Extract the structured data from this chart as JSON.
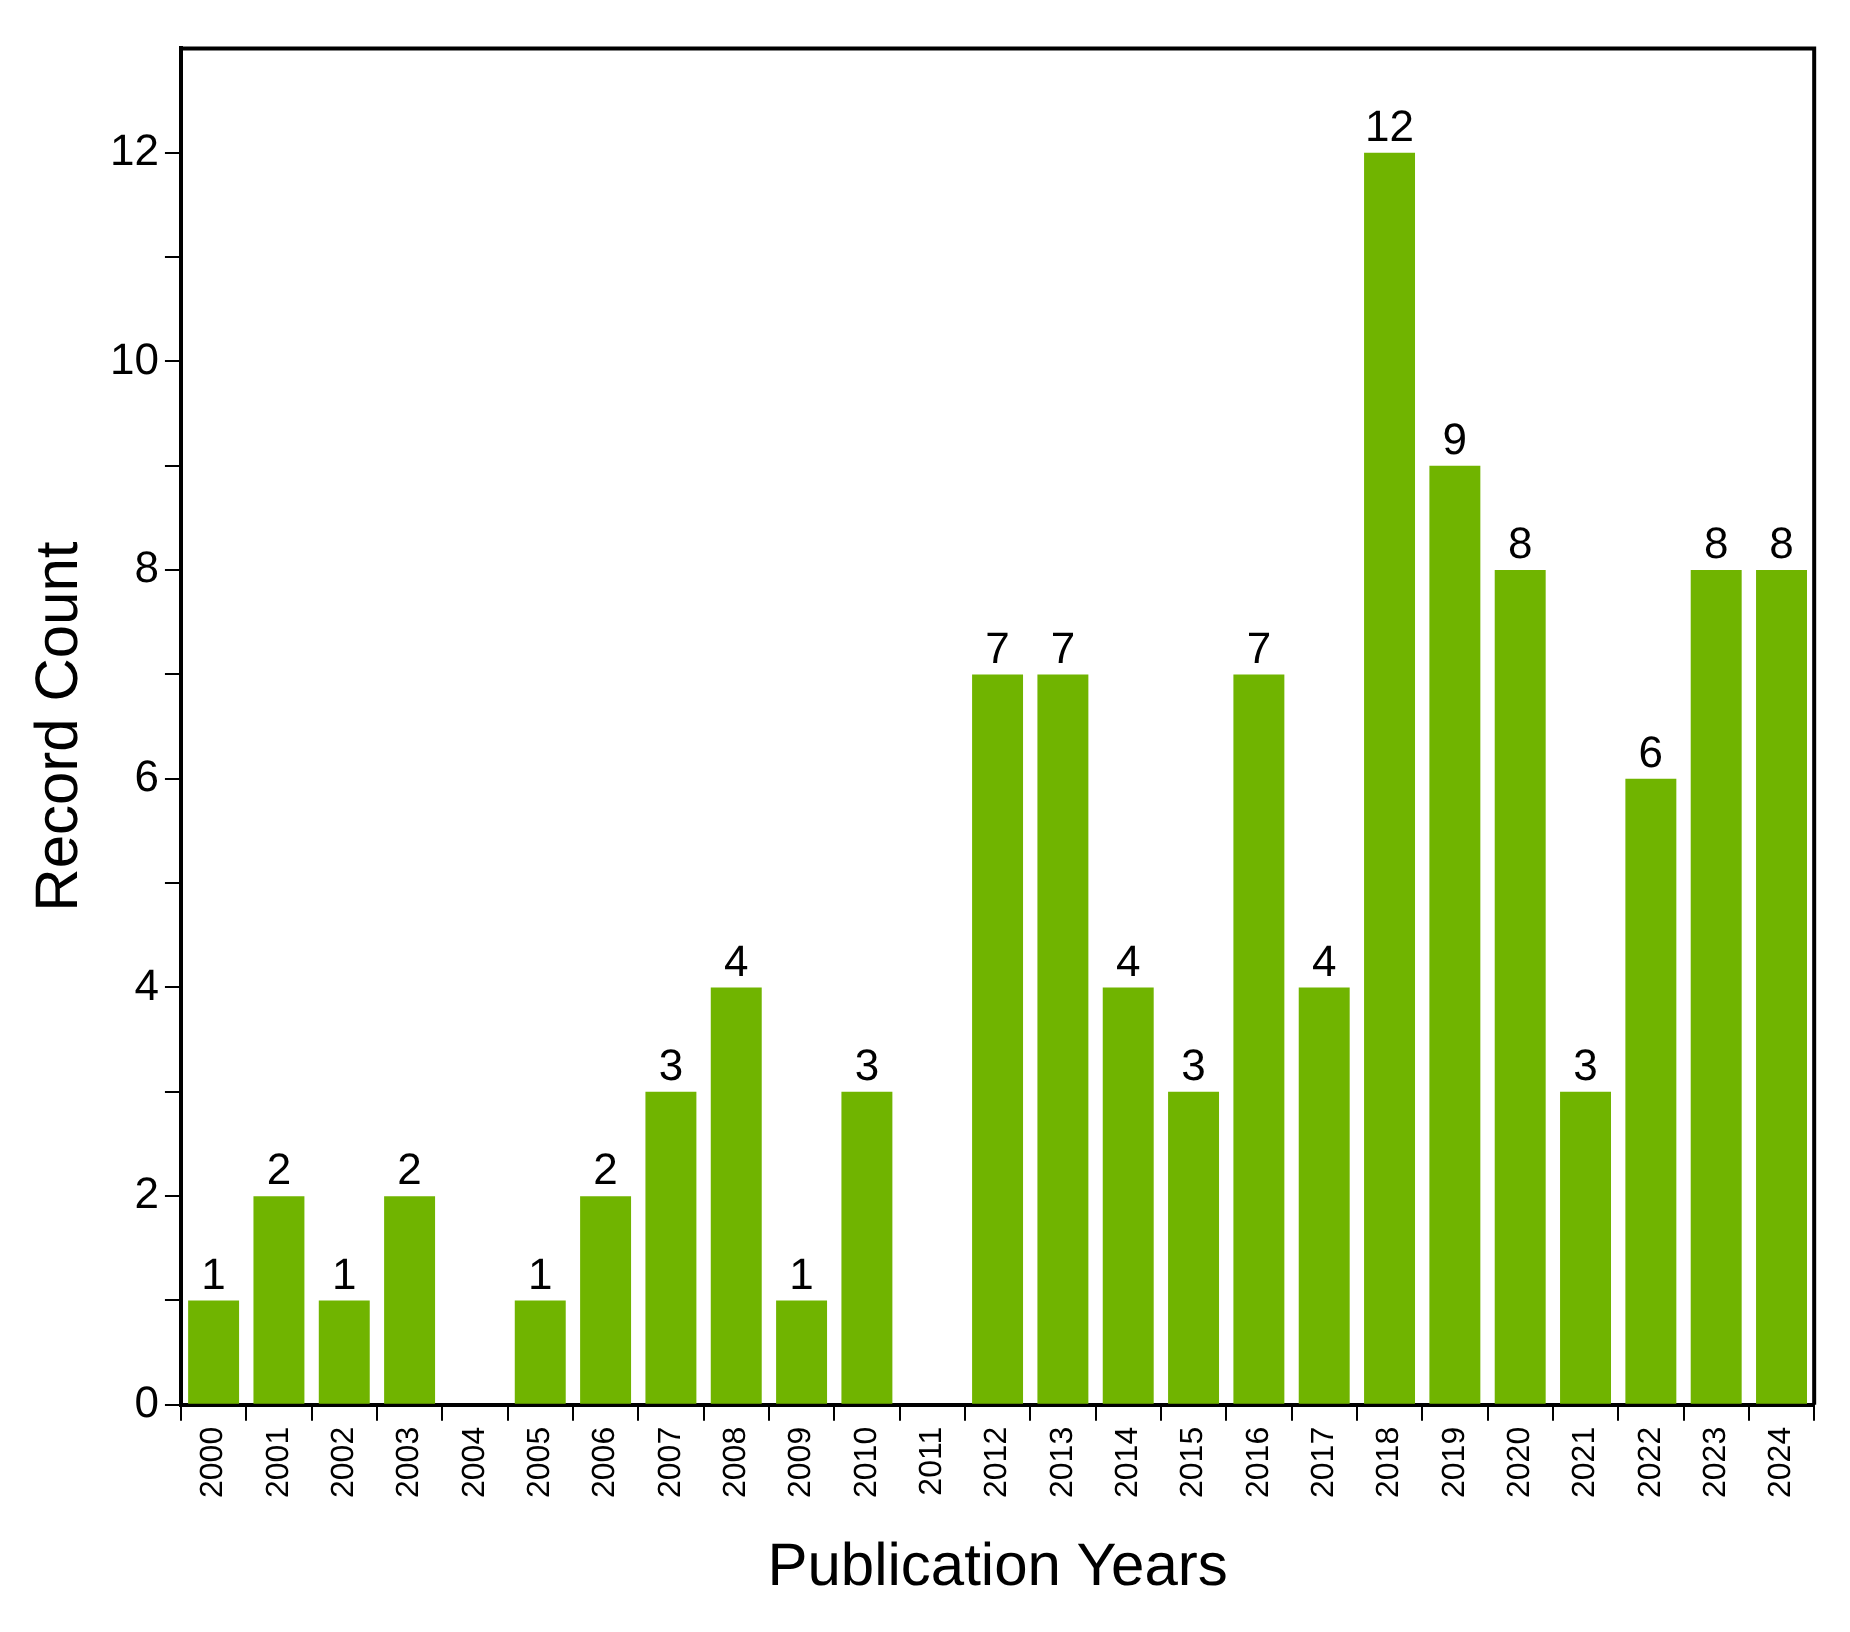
{
  "chart_data": {
    "type": "bar",
    "xlabel": "Publication Years",
    "ylabel": "Record Count",
    "categories": [
      "2000",
      "2001",
      "2002",
      "2003",
      "2004",
      "2005",
      "2006",
      "2007",
      "2008",
      "2009",
      "2010",
      "2011",
      "2012",
      "2013",
      "2014",
      "2015",
      "2016",
      "2017",
      "2018",
      "2019",
      "2020",
      "2021",
      "2022",
      "2023",
      "2024"
    ],
    "values": [
      1,
      2,
      1,
      2,
      0,
      1,
      2,
      3,
      4,
      1,
      3,
      0,
      7,
      7,
      4,
      3,
      7,
      4,
      12,
      9,
      8,
      3,
      6,
      8,
      8
    ],
    "value_labels": [
      "1",
      "2",
      "1",
      "2",
      null,
      "1",
      "2",
      "3",
      "4",
      "1",
      "3",
      null,
      "7",
      "7",
      "4",
      "3",
      "7",
      "4",
      "12",
      "9",
      "8",
      "3",
      "6",
      "8",
      "8"
    ],
    "color": "#70b400",
    "ylim": [
      0,
      13
    ],
    "yticks": [
      0,
      {
        "value": 1,
        "label": null
      },
      2,
      {
        "value": 3,
        "label": null
      },
      4,
      {
        "value": 5,
        "label": null
      },
      6,
      {
        "value": 7,
        "label": null
      },
      8,
      {
        "value": 9,
        "label": null
      },
      10,
      {
        "value": 11,
        "label": null
      },
      12
    ],
    "grid": false,
    "legend": false
  }
}
